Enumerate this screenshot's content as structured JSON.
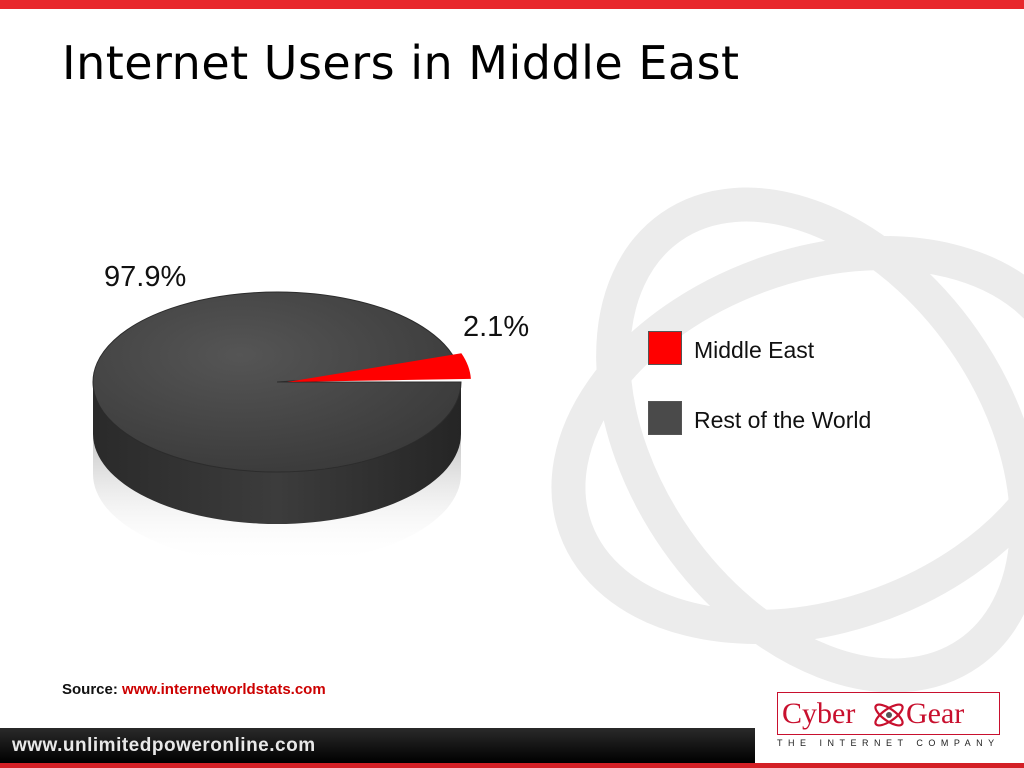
{
  "slide": {
    "title": "Internet Users in Middle East"
  },
  "chart_data": {
    "type": "pie",
    "title": "",
    "slices": [
      {
        "label": "Middle East",
        "value": 2.1,
        "display": "2.1%",
        "color": "#ff0000"
      },
      {
        "label": "Rest of the World",
        "value": 97.9,
        "display": "97.9%",
        "color": "#4a4a4a"
      }
    ],
    "legend_position": "right"
  },
  "legend": {
    "items": [
      {
        "label": "Middle East",
        "color": "#ff0000"
      },
      {
        "label": "Rest of the World",
        "color": "#4a4a4a"
      }
    ]
  },
  "source": {
    "prefix": "Source:",
    "link": "www.internetworldstats.com"
  },
  "footer": {
    "url": "www.unlimitedpoweronline.com"
  },
  "logo": {
    "text_left": "Cyber",
    "text_right": "Gear",
    "tagline": "THE INTERNET COMPANY"
  },
  "colors": {
    "accent_red": "#e8282c",
    "pie_dark": "#4a4a4a",
    "pie_red": "#ff0000"
  }
}
